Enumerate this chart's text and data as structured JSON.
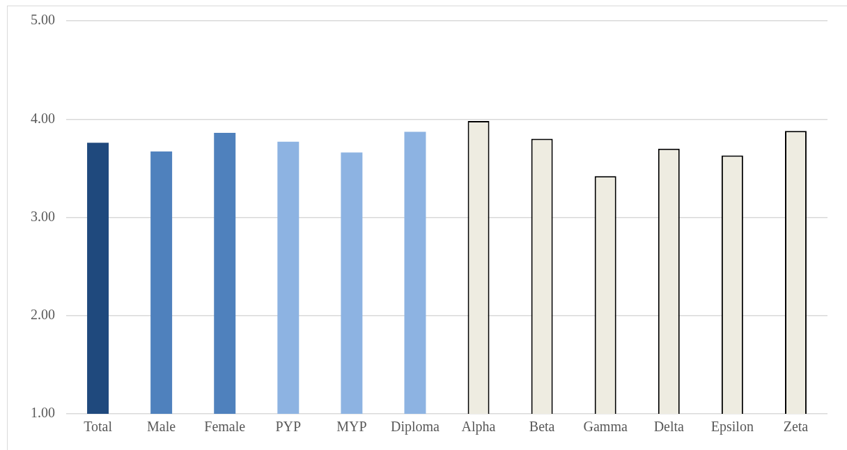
{
  "chart_data": {
    "type": "bar",
    "categories": [
      "Total",
      "Male",
      "Female",
      "PYP",
      "MYP",
      "Diploma",
      "Alpha",
      "Beta",
      "Gamma",
      "Delta",
      "Epsilon",
      "Zeta"
    ],
    "values": [
      3.76,
      3.67,
      3.86,
      3.77,
      3.66,
      3.87,
      3.98,
      3.8,
      3.42,
      3.7,
      3.63,
      3.88
    ],
    "colors": [
      "#1f497d",
      "#4f81bd",
      "#4f81bd",
      "#8db3e2",
      "#8db3e2",
      "#8db3e2",
      "#eeece1",
      "#eeece1",
      "#eeece1",
      "#eeece1",
      "#eeece1",
      "#eeece1"
    ],
    "ylim": [
      1,
      5
    ],
    "yticks": [
      {
        "value": 1,
        "label": "1.00"
      },
      {
        "value": 2,
        "label": "2.00"
      },
      {
        "value": 3,
        "label": "3.00"
      },
      {
        "value": 4,
        "label": "4.00"
      },
      {
        "value": 5,
        "label": "5.00"
      }
    ],
    "grid": "y",
    "legend": false
  }
}
